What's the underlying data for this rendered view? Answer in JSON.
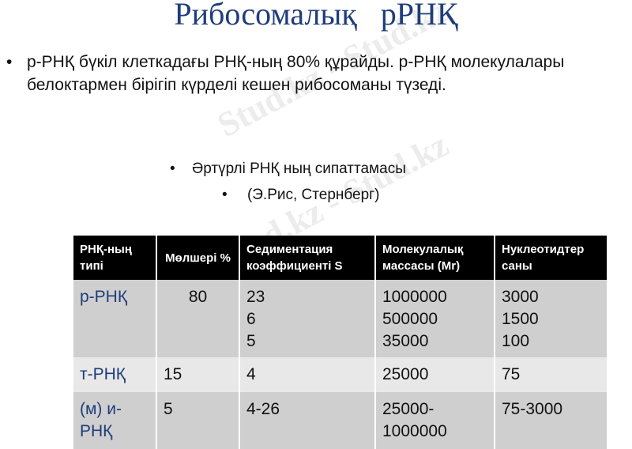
{
  "title": "Рибосомалық   рРНҚ",
  "watermark": "Stud.kz - Stud.kz",
  "paragraph": {
    "bullet": "•",
    "text": "р-РНҚ бүкіл клеткадағы РНҚ-ның 80% құрайды. р-РНҚ молекулалары белоктармен бірігіп күрделі кешен рибосоманы түзеді."
  },
  "subheading": {
    "bullet": "•",
    "text": "Әртүрлі РНҚ ның сипаттамасы"
  },
  "source": {
    "bullet": "•",
    "text": "(Э.Рис, Стернберг)"
  },
  "table": {
    "headers": [
      "РНҚ-ның типі",
      "Мөлшері %",
      "Седиментация коэффициенті S",
      "Молекулалық массасы (Mr)",
      "Нуклеотидтер саны"
    ],
    "rows": [
      [
        "р-РНҚ",
        "80",
        "23\n6\n5",
        "1000000\n500000\n35000",
        "3000\n1500\n100"
      ],
      [
        "т-РНҚ",
        "15",
        "4",
        "25000",
        "75"
      ],
      [
        "(м) и-РНҚ",
        "5",
        "4-26",
        "25000-\n1000000",
        "75-3000"
      ]
    ]
  },
  "colors": {
    "title": "#1f3d7a",
    "header_bg": "#000000",
    "row_dark": "#cfcfcf",
    "row_light": "#e8e8e8"
  }
}
